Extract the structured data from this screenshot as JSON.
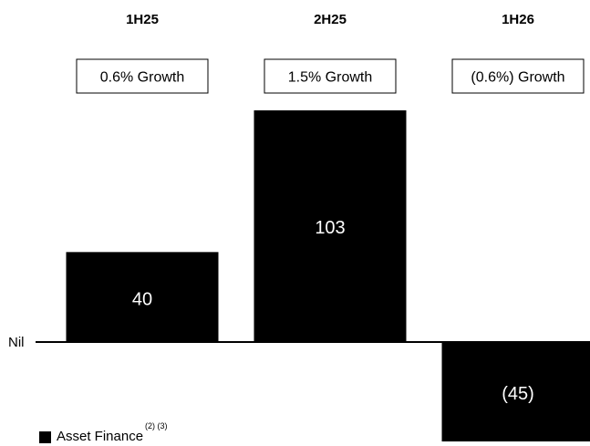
{
  "colors": {
    "bar": "#000000",
    "bar_label": "#ffffff",
    "box_border": "#000000",
    "baseline": "#000000"
  },
  "chart_data": {
    "type": "bar",
    "categories": [
      "1H25",
      "2H25",
      "1H26"
    ],
    "values": [
      40,
      103,
      -45
    ],
    "data_labels": [
      "40",
      "103",
      "(45)"
    ],
    "growth_labels": [
      "0.6% Growth",
      "1.5% Growth",
      "(0.6%) Growth"
    ],
    "baseline_label": "Nil",
    "legend": [
      {
        "label": "Asset Finance",
        "note": "(2) (3)"
      }
    ],
    "ylim": [
      -45,
      103
    ]
  }
}
